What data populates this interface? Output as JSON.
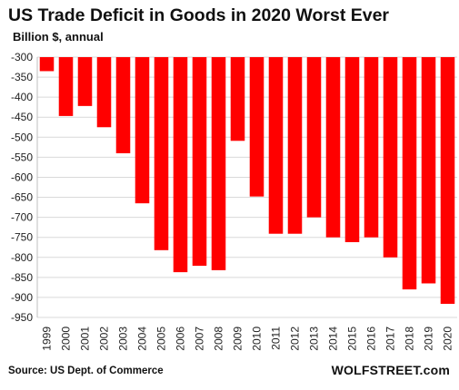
{
  "title": "US Trade Deficit in Goods in 2020 Worst Ever",
  "subtitle": "Billion $, annual",
  "source": "Source: US Dept. of Commerce",
  "brand": "WOLFSTREET.com",
  "colors": {
    "bar": "#ff0000",
    "grid": "#d9d9d9",
    "axis": "#bfbfbf"
  },
  "chart_data": {
    "type": "bar",
    "title": "US Trade Deficit in Goods in 2020 Worst Ever",
    "subtitle": "Billion $, annual",
    "categories": [
      "1999",
      "2000",
      "2001",
      "2002",
      "2003",
      "2004",
      "2005",
      "2006",
      "2007",
      "2008",
      "2009",
      "2010",
      "2011",
      "2012",
      "2013",
      "2014",
      "2015",
      "2016",
      "2017",
      "2018",
      "2019",
      "2020"
    ],
    "values": [
      -335,
      -447,
      -422,
      -475,
      -540,
      -665,
      -782,
      -837,
      -821,
      -832,
      -509,
      -648,
      -741,
      -741,
      -700,
      -750,
      -762,
      -750,
      -800,
      -880,
      -865,
      -916
    ],
    "ylim": [
      -950,
      -300
    ],
    "yticks": [
      -300,
      -350,
      -400,
      -450,
      -500,
      -550,
      -600,
      -650,
      -700,
      -750,
      -800,
      -850,
      -900,
      -950
    ],
    "grid": true,
    "legend": "none"
  }
}
